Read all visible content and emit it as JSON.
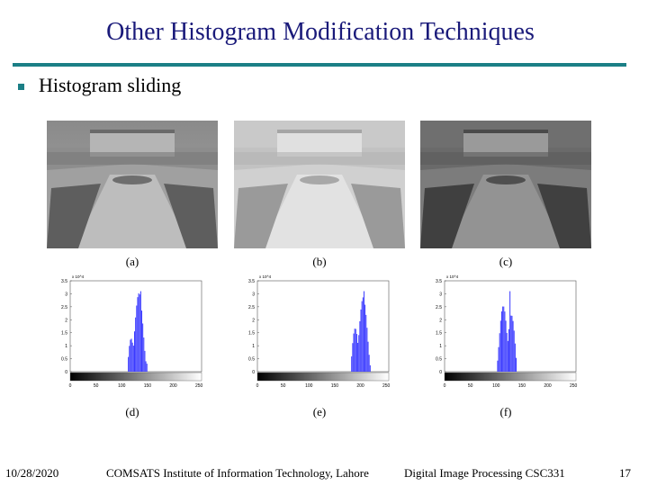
{
  "slide": {
    "title": "Other Histogram Modification Techniques",
    "bullet": "Histogram sliding"
  },
  "images": [
    {
      "caption": "(a)",
      "tone": "normal"
    },
    {
      "caption": "(b)",
      "tone": "brighter"
    },
    {
      "caption": "(c)",
      "tone": "darker"
    }
  ],
  "chart_data": [
    {
      "type": "bar",
      "caption": "(d)",
      "ylabel": "x 10^4",
      "xticks": [
        "0",
        "50",
        "100",
        "150",
        "200",
        "250"
      ],
      "yticks": [
        "0",
        "0.5",
        "1",
        "1.5",
        "2",
        "2.5",
        "3",
        "3.5"
      ],
      "xlim": [
        0,
        255
      ],
      "ylim": [
        0,
        3.5
      ],
      "peak_range": [
        110,
        150
      ],
      "peak_value": 3.1,
      "accent": "#3b3bff"
    },
    {
      "type": "bar",
      "caption": "(e)",
      "ylabel": "x 10^4",
      "xticks": [
        "0",
        "50",
        "100",
        "150",
        "200",
        "250"
      ],
      "yticks": [
        "0",
        "0.5",
        "1",
        "1.5",
        "2",
        "2.5",
        "3",
        "3.5"
      ],
      "xlim": [
        0,
        255
      ],
      "ylim": [
        0,
        3.5
      ],
      "peak_range": [
        180,
        220
      ],
      "peak_value": 3.1,
      "accent": "#3b3bff"
    },
    {
      "type": "bar",
      "caption": "(f)",
      "ylabel": "x 10^4",
      "xticks": [
        "0",
        "50",
        "100",
        "150",
        "200",
        "250"
      ],
      "yticks": [
        "0",
        "0.5",
        "1",
        "1.5",
        "2",
        "2.5",
        "3",
        "3.5"
      ],
      "xlim": [
        0,
        255
      ],
      "ylim": [
        0,
        3.5
      ],
      "peak_range": [
        100,
        140
      ],
      "peak_value": 3.1,
      "accent": "#3b3bff"
    }
  ],
  "footer": {
    "date": "10/28/2020",
    "institute": "COMSATS Institute of Information Technology, Lahore",
    "course": "Digital Image Processing CSC331",
    "page": "17"
  },
  "colors": {
    "title": "#1a1a7a",
    "rule": "#1b7f86",
    "bullet": "#1b7f86"
  }
}
